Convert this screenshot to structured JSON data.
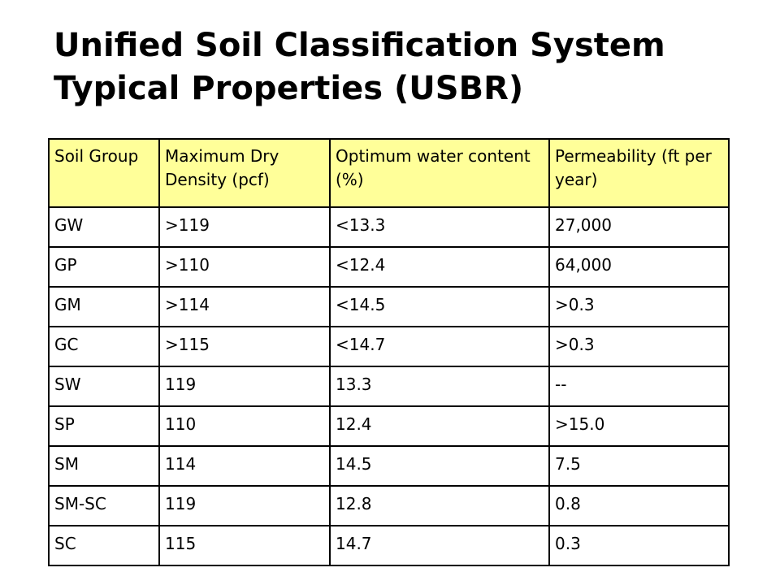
{
  "title": {
    "line1": "Unified Soil Classification System",
    "line2": "Typical Properties (USBR)"
  },
  "colors": {
    "header_background": "#ffff99",
    "border": "#000000",
    "text": "#000000"
  },
  "table": {
    "headers": [
      "Soil Group",
      "Maximum Dry Density (pcf)",
      "Optimum water content (%)",
      "Permeability (ft per year)"
    ],
    "rows": [
      [
        "GW",
        ">119",
        "<13.3",
        "27,000"
      ],
      [
        "GP",
        ">110",
        "<12.4",
        "64,000"
      ],
      [
        "GM",
        ">114",
        "<14.5",
        ">0.3"
      ],
      [
        "GC",
        ">115",
        "<14.7",
        ">0.3"
      ],
      [
        "SW",
        "119",
        "13.3",
        "--"
      ],
      [
        "SP",
        "110",
        "12.4",
        ">15.0"
      ],
      [
        "SM",
        "114",
        "14.5",
        "7.5"
      ],
      [
        "SM-SC",
        "119",
        "12.8",
        "0.8"
      ],
      [
        "SC",
        "115",
        "14.7",
        "0.3"
      ]
    ]
  }
}
